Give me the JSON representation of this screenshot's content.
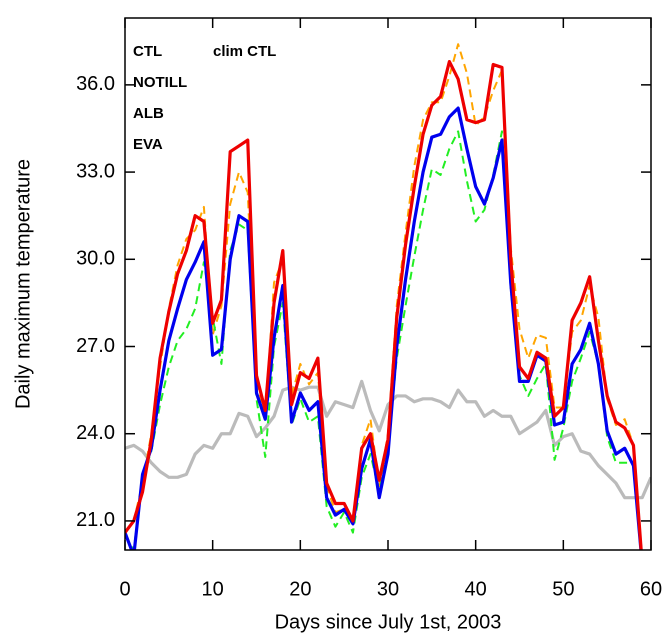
{
  "chart_data": {
    "type": "line",
    "xlabel": "Days since July 1st, 2003",
    "ylabel": "Daily maximum temperature",
    "x": [
      0,
      1,
      2,
      3,
      4,
      5,
      6,
      7,
      8,
      9,
      10,
      11,
      12,
      13,
      14,
      15,
      16,
      17,
      18,
      19,
      20,
      21,
      22,
      23,
      24,
      25,
      26,
      27,
      28,
      29,
      30,
      31,
      32,
      33,
      34,
      35,
      36,
      37,
      38,
      39,
      40,
      41,
      42,
      43,
      44,
      45,
      46,
      47,
      48,
      49,
      50,
      51,
      52,
      53,
      54,
      55,
      56,
      57,
      58,
      59,
      60
    ],
    "xlim": [
      0,
      60
    ],
    "xticks": [
      0,
      10,
      20,
      30,
      40,
      50,
      60
    ],
    "ylim": [
      20,
      38.3
    ],
    "yticks": [
      {
        "value": 21,
        "label": "21.0"
      },
      {
        "value": 24,
        "label": "24.0"
      },
      {
        "value": 27,
        "label": "27.0"
      },
      {
        "value": 30,
        "label": "30.0"
      },
      {
        "value": 33,
        "label": "33.0"
      },
      {
        "value": 36,
        "label": "36.0"
      }
    ],
    "series": [
      {
        "name": "CTL",
        "color": "#ee0000",
        "dashed": false,
        "values": [
          20.6,
          21.0,
          22.0,
          23.8,
          26.6,
          28.2,
          29.5,
          30.3,
          31.5,
          31.3,
          27.8,
          28.6,
          33.7,
          33.9,
          34.1,
          26.0,
          24.8,
          28.5,
          30.3,
          25.0,
          26.1,
          25.9,
          26.6,
          22.3,
          21.6,
          21.6,
          21.0,
          23.5,
          24.0,
          22.4,
          23.8,
          28.0,
          30.5,
          32.5,
          34.3,
          35.3,
          35.6,
          36.8,
          36.2,
          34.8,
          34.7,
          34.8,
          36.7,
          36.6,
          30.0,
          26.3,
          25.9,
          26.8,
          26.6,
          24.6,
          24.9,
          27.9,
          28.5,
          29.4,
          27.2,
          25.3,
          24.4,
          24.2,
          23.6,
          19.5,
          null
        ]
      },
      {
        "name": "NOTILL",
        "color": "#0000ee",
        "dashed": false,
        "values": [
          20.6,
          19.8,
          22.6,
          23.5,
          25.5,
          27.2,
          28.3,
          29.3,
          29.9,
          30.6,
          26.7,
          26.9,
          30.0,
          31.5,
          31.3,
          25.4,
          24.5,
          27.3,
          29.1,
          24.4,
          25.4,
          24.8,
          25.1,
          21.8,
          21.2,
          21.4,
          20.9,
          22.8,
          23.8,
          21.8,
          23.3,
          27.0,
          29.3,
          31.3,
          33.0,
          34.2,
          34.3,
          34.9,
          35.2,
          33.8,
          32.5,
          31.9,
          32.8,
          34.1,
          29.2,
          25.8,
          25.8,
          26.7,
          26.5,
          24.3,
          24.4,
          26.4,
          26.9,
          27.8,
          26.4,
          24.1,
          23.3,
          23.5,
          22.9,
          19.5,
          null
        ]
      },
      {
        "name": "ALB",
        "color": "#22ee22",
        "dashed": true,
        "values": [
          20.5,
          20.0,
          22.5,
          23.4,
          25.0,
          26.3,
          27.2,
          27.6,
          28.3,
          29.9,
          28.0,
          26.4,
          30.3,
          31.2,
          31.0,
          25.2,
          23.2,
          27.0,
          28.5,
          24.3,
          25.2,
          24.4,
          24.6,
          21.5,
          20.8,
          21.3,
          20.6,
          22.5,
          23.3,
          22.0,
          23.5,
          26.6,
          28.4,
          30.1,
          31.7,
          33.1,
          32.9,
          33.8,
          34.4,
          32.7,
          31.3,
          31.7,
          32.9,
          34.4,
          29.0,
          26.0,
          25.3,
          25.9,
          26.4,
          23.1,
          24.2,
          25.8,
          26.6,
          27.5,
          26.4,
          23.9,
          23.0,
          23.0,
          23.0,
          19.5,
          null
        ]
      },
      {
        "name": "EVA",
        "color": "#ffa500",
        "dashed": true,
        "values": [
          20.6,
          21.0,
          22.3,
          24.0,
          26.3,
          28.3,
          29.8,
          30.7,
          31.0,
          31.8,
          27.4,
          28.4,
          31.9,
          33.0,
          32.3,
          25.7,
          24.5,
          29.2,
          30.0,
          25.3,
          26.4,
          25.7,
          26.1,
          22.2,
          21.3,
          21.4,
          21.0,
          23.6,
          24.5,
          22.2,
          24.0,
          28.4,
          30.9,
          33.2,
          34.8,
          35.4,
          35.4,
          36.3,
          37.4,
          36.4,
          34.6,
          34.9,
          35.8,
          36.5,
          30.4,
          27.6,
          26.6,
          27.4,
          27.3,
          24.9,
          24.9,
          27.5,
          27.9,
          29.1,
          28.0,
          25.2,
          24.3,
          24.5,
          23.6,
          19.5,
          null
        ]
      },
      {
        "name": "clim CTL",
        "color": "#bbbbbb",
        "dashed": false,
        "values": [
          23.5,
          23.6,
          23.4,
          23.0,
          22.7,
          22.5,
          22.5,
          22.6,
          23.3,
          23.6,
          23.5,
          24.0,
          24.0,
          24.7,
          24.6,
          23.9,
          24.2,
          24.6,
          25.5,
          25.6,
          25.5,
          25.6,
          25.6,
          24.6,
          25.1,
          25.0,
          24.9,
          25.8,
          24.8,
          24.1,
          25.0,
          25.3,
          25.3,
          25.1,
          25.2,
          25.2,
          25.1,
          24.9,
          25.5,
          25.1,
          25.1,
          24.6,
          24.8,
          24.6,
          24.6,
          24.0,
          24.2,
          24.4,
          24.8,
          23.6,
          23.9,
          24.0,
          23.4,
          23.3,
          22.9,
          22.6,
          22.3,
          21.8,
          21.8,
          21.8,
          22.5
        ]
      }
    ]
  }
}
